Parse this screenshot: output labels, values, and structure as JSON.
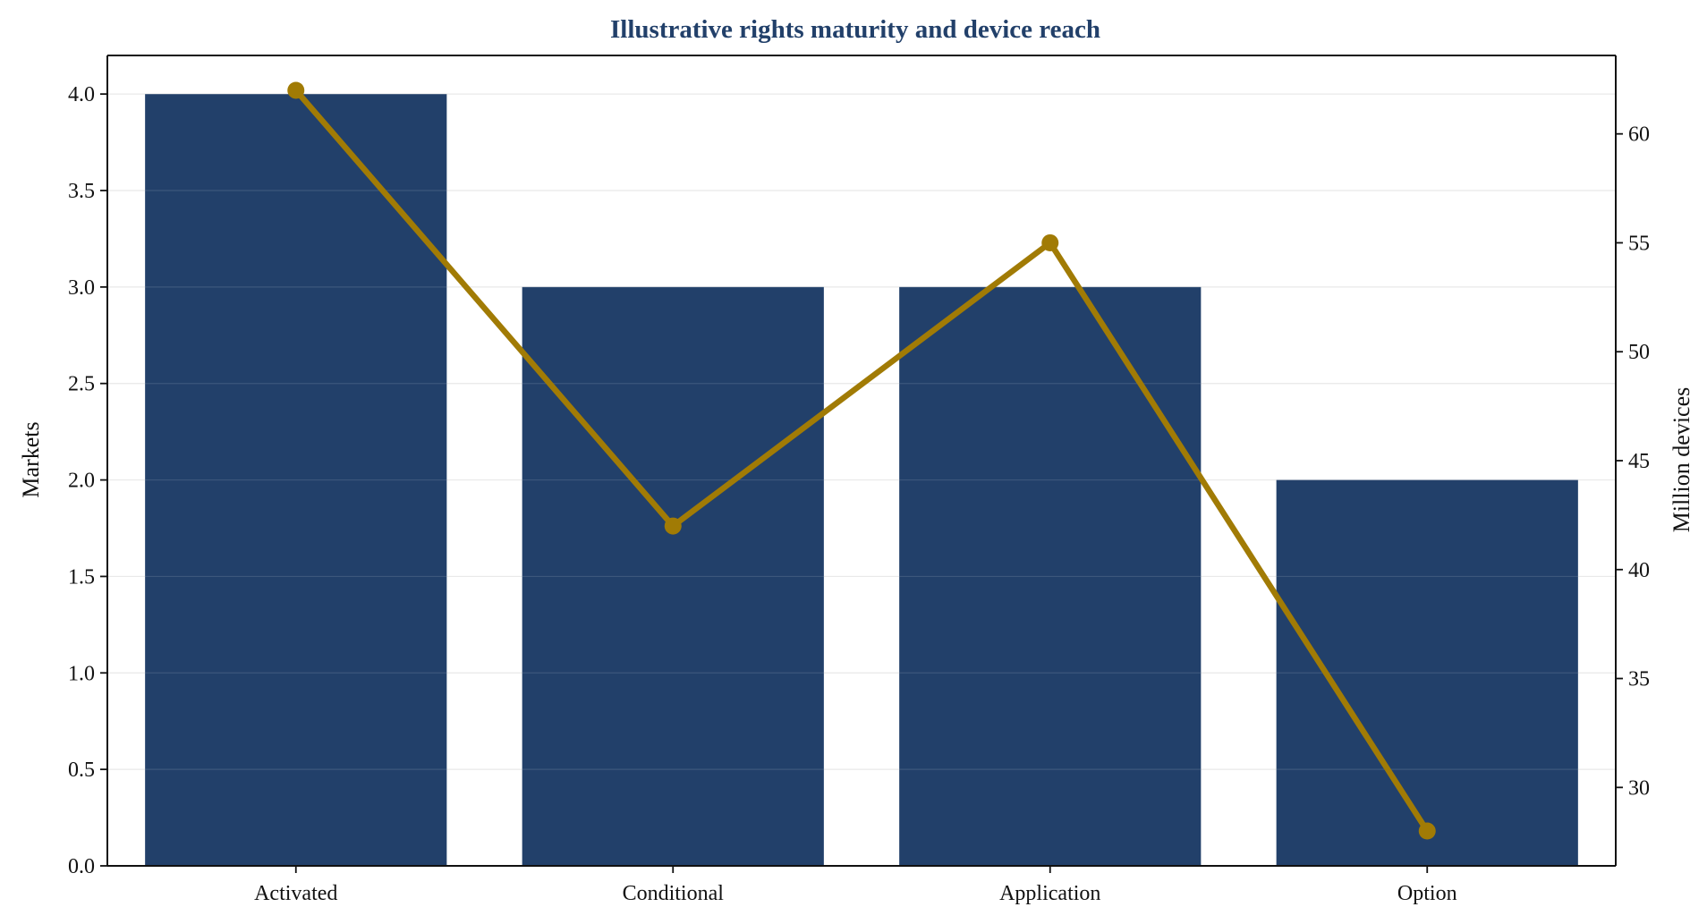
{
  "chart_data": {
    "type": "bar",
    "title": "Illustrative rights maturity and device reach",
    "categories": [
      "Activated",
      "Conditional",
      "Application",
      "Option"
    ],
    "series": [
      {
        "type": "bar",
        "axis": "left",
        "values": [
          4,
          3,
          3,
          2
        ],
        "color": "#22406a"
      },
      {
        "type": "line",
        "axis": "right",
        "values": [
          62,
          42,
          55,
          28
        ],
        "color": "#a17b05"
      }
    ],
    "xlabel": "",
    "ylabel": "Markets",
    "y2label": "Million devices",
    "ylim": [
      0,
      4.2
    ],
    "y2lim": [
      26.4,
      63.6
    ],
    "yticks": [
      "0.0",
      "0.5",
      "1.0",
      "1.5",
      "2.0",
      "2.5",
      "3.0",
      "3.5",
      "4.0"
    ],
    "y2ticks": [
      "30",
      "35",
      "40",
      "45",
      "50",
      "55",
      "60"
    ],
    "grid": true,
    "legend": "none",
    "colors": {
      "title": "#22406a",
      "grid": "#e6e6e6",
      "axis": "#111111"
    }
  }
}
